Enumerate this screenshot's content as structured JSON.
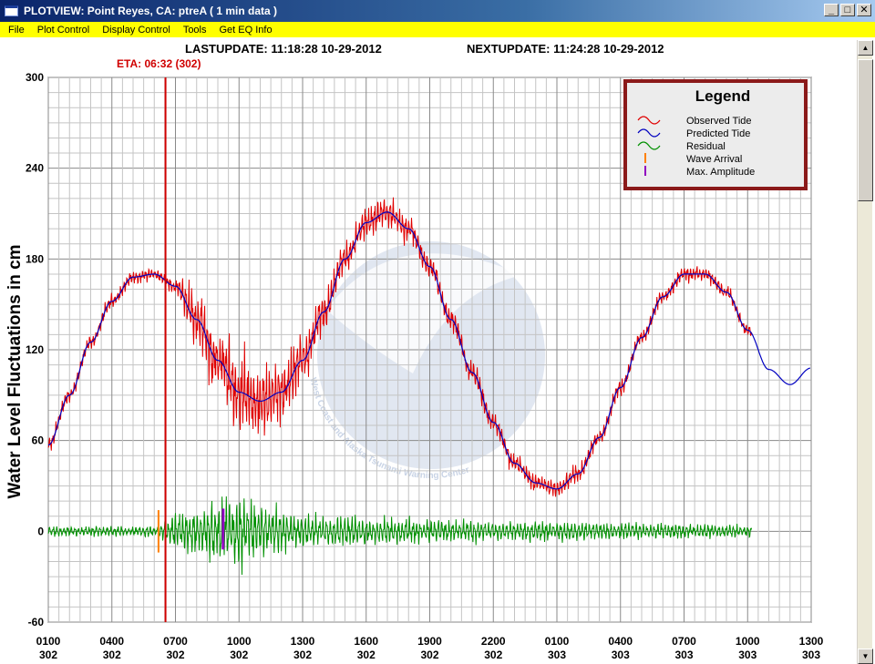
{
  "window": {
    "title": "PLOTVIEW:  Point Reyes, CA: ptreA (  1 min data )",
    "minimize": "_",
    "maximize": "□",
    "close": "✕"
  },
  "menu": [
    "File",
    "Plot Control",
    "Display Control",
    "Tools",
    "Get EQ Info"
  ],
  "header": {
    "last_update": "LASTUPDATE: 11:18:28 10-29-2012",
    "next_update": "NEXTUPDATE: 11:24:28 10-29-2012",
    "eta": "ETA: 06:32 (302)"
  },
  "watermark": {
    "text": "West Coast and Alaska Tsunami Warning Center"
  },
  "colors": {
    "observed": "#e00000",
    "predicted": "#0000c0",
    "residual": "#009000",
    "wave_arrival": "#ff8000",
    "max_amplitude": "#9000c0",
    "eta_line": "#d00000",
    "legend_border": "#8b1a1a",
    "legend_bg": "#ececec"
  },
  "chart_data": {
    "type": "line",
    "title": "",
    "ylabel": "Water Level Fluctuations in cm",
    "xlabel": "",
    "ylim": [
      -60,
      300
    ],
    "xlim": [
      1,
      37
    ],
    "yticks": [
      -60,
      0,
      60,
      120,
      180,
      240,
      300
    ],
    "xticks": [
      {
        "x": 1,
        "time": "0100",
        "day": "302"
      },
      {
        "x": 4,
        "time": "0400",
        "day": "302"
      },
      {
        "x": 7,
        "time": "0700",
        "day": "302"
      },
      {
        "x": 10,
        "time": "1000",
        "day": "302"
      },
      {
        "x": 13,
        "time": "1300",
        "day": "302"
      },
      {
        "x": 16,
        "time": "1600",
        "day": "302"
      },
      {
        "x": 19,
        "time": "1900",
        "day": "302"
      },
      {
        "x": 22,
        "time": "2200",
        "day": "302"
      },
      {
        "x": 25,
        "time": "0100",
        "day": "303"
      },
      {
        "x": 28,
        "time": "0400",
        "day": "303"
      },
      {
        "x": 31,
        "time": "0700",
        "day": "303"
      },
      {
        "x": 34,
        "time": "1000",
        "day": "303"
      },
      {
        "x": 37,
        "time": "1300",
        "day": "303"
      }
    ],
    "grid": true,
    "legend": {
      "title": "Legend",
      "placement": "top-right",
      "entries": [
        "Observed Tide",
        "Predicted Tide",
        "Residual",
        "Wave Arrival",
        "Max. Amplitude"
      ]
    },
    "series": [
      {
        "name": "Predicted Tide",
        "x": [
          1,
          2,
          3,
          4,
          5,
          6,
          7,
          8,
          9,
          10,
          11,
          12,
          13,
          14,
          15,
          16,
          17,
          18,
          19,
          20,
          21,
          22,
          23,
          24,
          25,
          26,
          27,
          28,
          29,
          30,
          31,
          32,
          33,
          34,
          35,
          36,
          37
        ],
        "values": [
          57,
          90,
          125,
          152,
          168,
          170,
          162,
          140,
          113,
          92,
          86,
          92,
          113,
          145,
          180,
          204,
          211,
          200,
          175,
          140,
          105,
          72,
          45,
          32,
          28,
          38,
          62,
          95,
          128,
          155,
          170,
          170,
          158,
          133,
          107,
          97,
          108
        ]
      },
      {
        "name": "Observed Tide",
        "x_end": 34.2,
        "noise_envelope": [
          [
            1,
            4
          ],
          [
            7,
            4
          ],
          [
            8,
            18
          ],
          [
            11,
            22
          ],
          [
            13,
            15
          ],
          [
            15,
            10
          ],
          [
            19,
            7
          ],
          [
            26,
            5
          ],
          [
            34,
            4
          ]
        ]
      },
      {
        "name": "Residual",
        "x_end": 34.2,
        "amplitude_envelope": [
          [
            1,
            3
          ],
          [
            6.2,
            3
          ],
          [
            7,
            10
          ],
          [
            9,
            18
          ],
          [
            10,
            22
          ],
          [
            11,
            15
          ],
          [
            13,
            9
          ],
          [
            16,
            8
          ],
          [
            22,
            6
          ],
          [
            28,
            5
          ],
          [
            34,
            4
          ]
        ]
      }
    ],
    "markers": {
      "eta_line_x": 6.53,
      "wave_arrival": {
        "x": 6.2,
        "low": -14,
        "high": 14
      },
      "max_amplitude": {
        "x": 9.25,
        "low": -12,
        "high": 15
      }
    }
  }
}
